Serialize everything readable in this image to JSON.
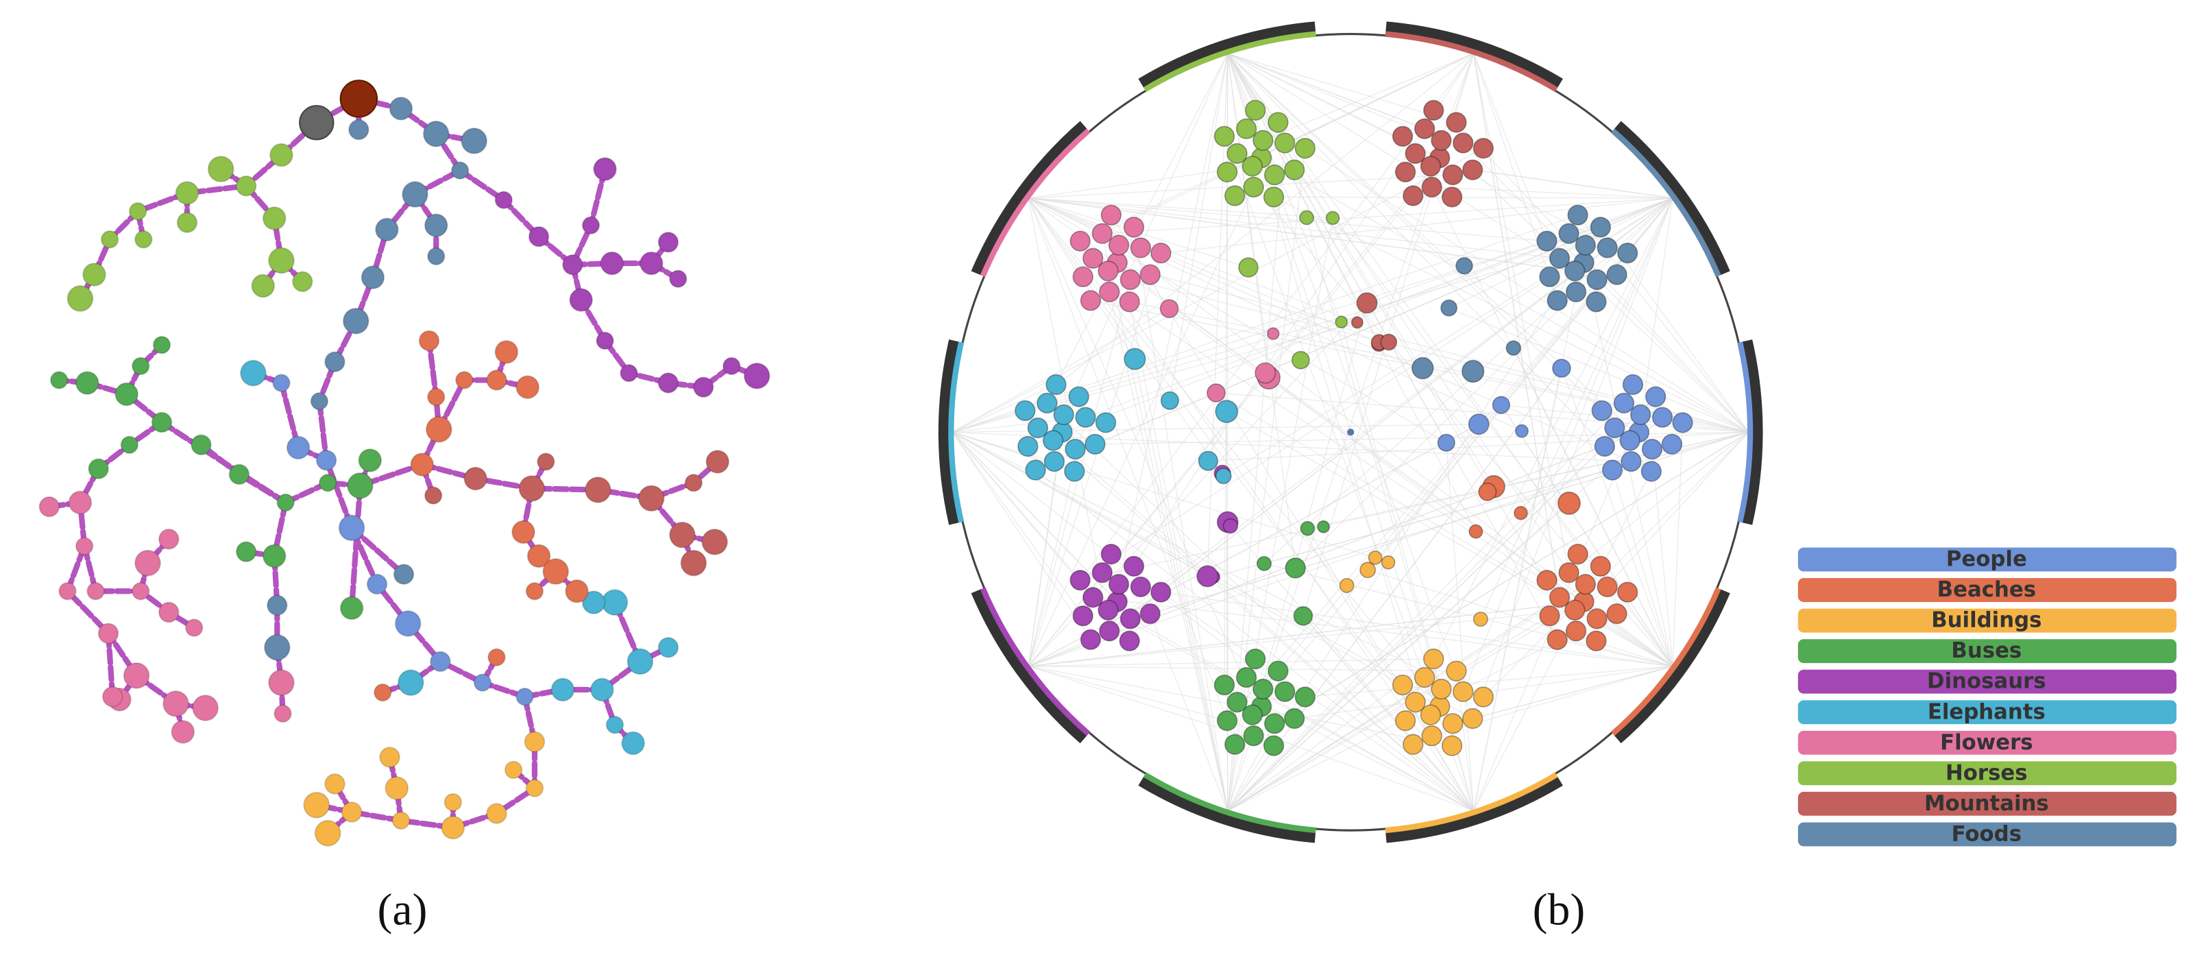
{
  "panel_a": {
    "label": "(a)"
  },
  "panel_b": {
    "label": "(b)",
    "legend": [
      {
        "label": "People",
        "color": "#6f93d8"
      },
      {
        "label": "Beaches",
        "color": "#e2714f"
      },
      {
        "label": "Buildings",
        "color": "#f7b446"
      },
      {
        "label": "Buses",
        "color": "#52aa52"
      },
      {
        "label": "Dinosaurs",
        "color": "#a446b4"
      },
      {
        "label": "Elephants",
        "color": "#4ab2d2"
      },
      {
        "label": "Flowers",
        "color": "#e374a2"
      },
      {
        "label": "Horses",
        "color": "#8fc04a"
      },
      {
        "label": "Mountains",
        "color": "#c2605e"
      },
      {
        "label": "Foods",
        "color": "#6389ad"
      }
    ]
  }
}
